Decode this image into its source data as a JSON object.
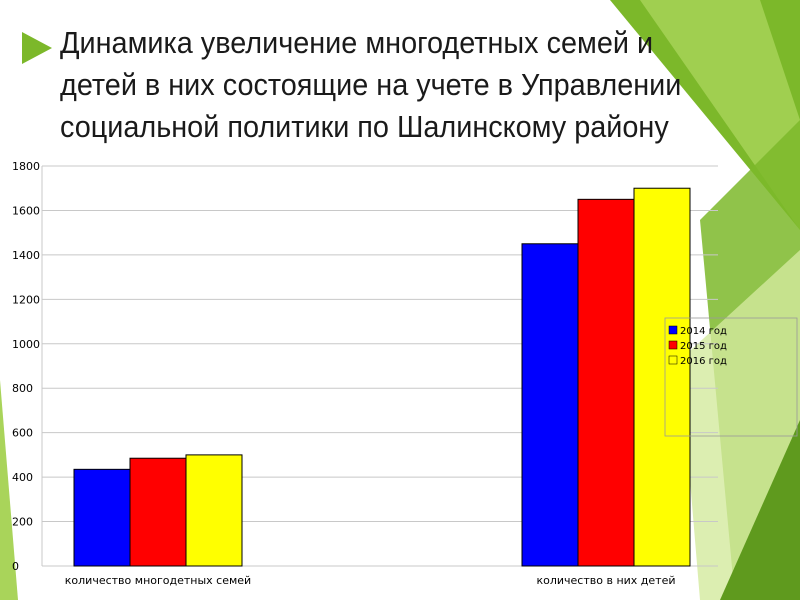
{
  "colors": {
    "green_dark": "#5f9a1e",
    "green_mid": "#7cb82a",
    "green_light": "#a9d45a",
    "green_pale": "#d3ea9e"
  },
  "chart_data": {
    "type": "bar",
    "title": "Динамика увеличение  многодетных семей и детей в  них состоящие на учете в Управлении социальной политики по Шалинскому району",
    "categories": [
      "количество многодетных семей",
      "количество в них детей"
    ],
    "series": [
      {
        "name": "2014 год",
        "color": "#0000ff",
        "values": [
          435,
          1450
        ]
      },
      {
        "name": "2015 год",
        "color": "#ff0000",
        "values": [
          485,
          1650
        ]
      },
      {
        "name": "2016 год",
        "color": "#ffff00",
        "values": [
          500,
          1700
        ]
      }
    ],
    "yticks": [
      0,
      200,
      400,
      600,
      800,
      1000,
      1200,
      1400,
      1600,
      1800
    ],
    "ylim": [
      0,
      1800
    ],
    "grid": true,
    "legend": "right"
  }
}
